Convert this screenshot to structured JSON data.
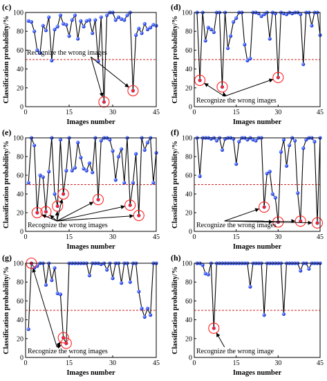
{
  "figure": {
    "line_color": "#000000",
    "marker_color": "#3b5cff",
    "threshold_color": "#cc2222",
    "highlight_color": "#ff2020"
  },
  "chart_data": [
    {
      "panel": "(c)",
      "type": "line",
      "xlabel": "Images number",
      "ylabel": "Classification probability/%",
      "xlim": [
        0,
        45
      ],
      "ylim": [
        0,
        100
      ],
      "xticks": [
        0,
        15,
        30,
        45
      ],
      "yticks": [
        0,
        20,
        40,
        60,
        80,
        100
      ],
      "threshold": 50,
      "grid": false,
      "x": [
        1,
        2,
        3,
        4,
        5,
        6,
        7,
        8,
        9,
        10,
        11,
        12,
        13,
        14,
        15,
        16,
        17,
        18,
        19,
        20,
        21,
        22,
        23,
        24,
        25,
        26,
        27,
        28,
        29,
        30,
        31,
        32,
        33,
        34,
        35,
        36,
        37,
        38,
        39,
        40,
        41,
        42,
        43,
        44,
        45
      ],
      "y": [
        91,
        90,
        80,
        60,
        57,
        86,
        81,
        95,
        49,
        82,
        85,
        97,
        88,
        87,
        75,
        92,
        97,
        72,
        91,
        85,
        91,
        92,
        78,
        92,
        48,
        95,
        5,
        97,
        100,
        100,
        92,
        95,
        93,
        92,
        97,
        100,
        17,
        76,
        83,
        78,
        88,
        82,
        84,
        87,
        86
      ],
      "wrong_indices": [
        27,
        37
      ],
      "annotation": "Recognize the wrong images",
      "annotation_pos": "top"
    },
    {
      "panel": "(d)",
      "type": "line",
      "xlabel": "Images number",
      "ylabel": "Classification probability/%",
      "xlim": [
        0,
        45
      ],
      "ylim": [
        0,
        100
      ],
      "xticks": [
        0,
        15,
        30,
        45
      ],
      "yticks": [
        0,
        20,
        40,
        60,
        80,
        100
      ],
      "threshold": 50,
      "grid": false,
      "x": [
        1,
        2,
        3,
        4,
        5,
        6,
        7,
        8,
        9,
        10,
        11,
        12,
        13,
        14,
        15,
        16,
        17,
        18,
        19,
        20,
        21,
        22,
        23,
        24,
        25,
        26,
        27,
        28,
        29,
        30,
        31,
        32,
        33,
        34,
        35,
        36,
        37,
        38,
        39,
        40,
        41,
        42,
        43,
        44,
        45
      ],
      "y": [
        100,
        28,
        100,
        70,
        84,
        82,
        79,
        100,
        100,
        21,
        100,
        62,
        75,
        90,
        94,
        100,
        100,
        66,
        49,
        51,
        100,
        100,
        99,
        96,
        98,
        100,
        72,
        100,
        99,
        31,
        100,
        99,
        98,
        100,
        99,
        100,
        100,
        98,
        45,
        100,
        100,
        86,
        100,
        100,
        76
      ],
      "wrong_indices": [
        2,
        10,
        30
      ],
      "annotation": "Recognize the wrong images",
      "annotation_pos": "bottom"
    },
    {
      "panel": "(e)",
      "type": "line",
      "xlabel": "Images number",
      "ylabel": "Classification probability/%",
      "xlim": [
        0,
        45
      ],
      "ylim": [
        0,
        100
      ],
      "xticks": [
        0,
        15,
        30,
        45
      ],
      "yticks": [
        0,
        20,
        40,
        60,
        80,
        100
      ],
      "threshold": 50,
      "grid": false,
      "x": [
        1,
        2,
        3,
        4,
        5,
        6,
        7,
        8,
        9,
        10,
        11,
        12,
        13,
        14,
        15,
        16,
        17,
        18,
        19,
        20,
        21,
        22,
        23,
        24,
        25,
        26,
        27,
        28,
        29,
        30,
        31,
        32,
        33,
        34,
        35,
        36,
        37,
        38,
        39,
        40,
        41,
        42,
        43,
        44,
        45
      ],
      "y": [
        52,
        100,
        92,
        20,
        60,
        58,
        21,
        64,
        100,
        40,
        27,
        98,
        40,
        65,
        100,
        65,
        68,
        95,
        79,
        67,
        65,
        73,
        63,
        100,
        34,
        97,
        100,
        100,
        98,
        86,
        55,
        80,
        88,
        52,
        100,
        28,
        52,
        83,
        17,
        100,
        87,
        95,
        100,
        52,
        84
      ],
      "wrong_indices": [
        4,
        7,
        11,
        13,
        25,
        36,
        39
      ],
      "annotation": "Recognize the wrong images",
      "annotation_pos": "bottom"
    },
    {
      "panel": "(f)",
      "type": "line",
      "xlabel": "Images number",
      "ylabel": "Classification probability/%",
      "xlim": [
        0,
        45
      ],
      "ylim": [
        0,
        100
      ],
      "xticks": [
        0,
        15,
        30,
        45
      ],
      "yticks": [
        0,
        20,
        40,
        60,
        80,
        100
      ],
      "threshold": 50,
      "grid": false,
      "x": [
        1,
        2,
        3,
        4,
        5,
        6,
        7,
        8,
        9,
        10,
        11,
        12,
        13,
        14,
        15,
        16,
        17,
        18,
        19,
        20,
        21,
        22,
        23,
        24,
        25,
        26,
        27,
        28,
        29,
        30,
        31,
        32,
        33,
        34,
        35,
        36,
        37,
        38,
        39,
        40,
        41,
        42,
        43,
        44,
        45
      ],
      "y": [
        100,
        59,
        100,
        100,
        100,
        99,
        100,
        97,
        100,
        87,
        99,
        100,
        100,
        99,
        72,
        96,
        100,
        100,
        98,
        100,
        98,
        97,
        100,
        100,
        26,
        62,
        64,
        40,
        36,
        10,
        85,
        98,
        70,
        92,
        100,
        97,
        41,
        11,
        89,
        98,
        100,
        100,
        96,
        9,
        100
      ],
      "wrong_indices": [
        25,
        30,
        38,
        44
      ],
      "annotation": "Recognize the wrong images",
      "annotation_pos": "bottom"
    },
    {
      "panel": "(g)",
      "type": "line",
      "xlabel": "Images number",
      "ylabel": "Classification probability/%",
      "xlim": [
        0,
        45
      ],
      "ylim": [
        0,
        100
      ],
      "xticks": [
        0,
        15,
        30,
        45
      ],
      "yticks": [
        0,
        20,
        40,
        60,
        80,
        100
      ],
      "threshold": 50,
      "grid": false,
      "x": [
        1,
        2,
        3,
        4,
        5,
        6,
        7,
        8,
        9,
        10,
        11,
        12,
        13,
        14,
        15,
        16,
        17,
        18,
        19,
        20,
        21,
        22,
        23,
        24,
        25,
        26,
        27,
        28,
        29,
        30,
        31,
        32,
        33,
        34,
        35,
        36,
        37,
        38,
        39,
        40,
        41,
        42,
        43,
        44,
        45
      ],
      "y": [
        30,
        100,
        95,
        97,
        100,
        100,
        77,
        100,
        82,
        95,
        68,
        67,
        21,
        15,
        100,
        100,
        100,
        100,
        100,
        100,
        100,
        87,
        100,
        100,
        100,
        99,
        100,
        93,
        100,
        84,
        100,
        100,
        79,
        100,
        100,
        80,
        100,
        100,
        70,
        52,
        43,
        52,
        45,
        100,
        100
      ],
      "wrong_indices": [
        2,
        13,
        14
      ],
      "annotation": "Recognize the wrong images",
      "annotation_pos": "bottom"
    },
    {
      "panel": "(h)",
      "type": "line",
      "xlabel": "Images number",
      "ylabel": "Classification probability/%",
      "xlim": [
        0,
        45
      ],
      "ylim": [
        0,
        100
      ],
      "xticks": [
        0,
        15,
        30,
        45
      ],
      "yticks": [
        0,
        20,
        40,
        60,
        80,
        100
      ],
      "threshold": 50,
      "grid": false,
      "x": [
        1,
        2,
        3,
        4,
        5,
        6,
        7,
        8,
        9,
        10,
        11,
        12,
        13,
        14,
        15,
        16,
        17,
        18,
        19,
        20,
        21,
        22,
        23,
        24,
        25,
        26,
        27,
        28,
        29,
        30,
        31,
        32,
        33,
        34,
        35,
        36,
        37,
        38,
        39,
        40,
        41,
        42,
        43,
        44,
        45
      ],
      "y": [
        100,
        100,
        98,
        89,
        88,
        100,
        31,
        100,
        100,
        100,
        100,
        100,
        100,
        100,
        100,
        100,
        100,
        100,
        100,
        75,
        100,
        100,
        100,
        100,
        45,
        100,
        100,
        100,
        100,
        100,
        100,
        46,
        100,
        100,
        100,
        100,
        100,
        92,
        100,
        100,
        94,
        100,
        100,
        100,
        100
      ],
      "wrong_indices": [
        7
      ],
      "annotation": "Recognize the wrong image",
      "annotation_pos": "bottom"
    }
  ]
}
